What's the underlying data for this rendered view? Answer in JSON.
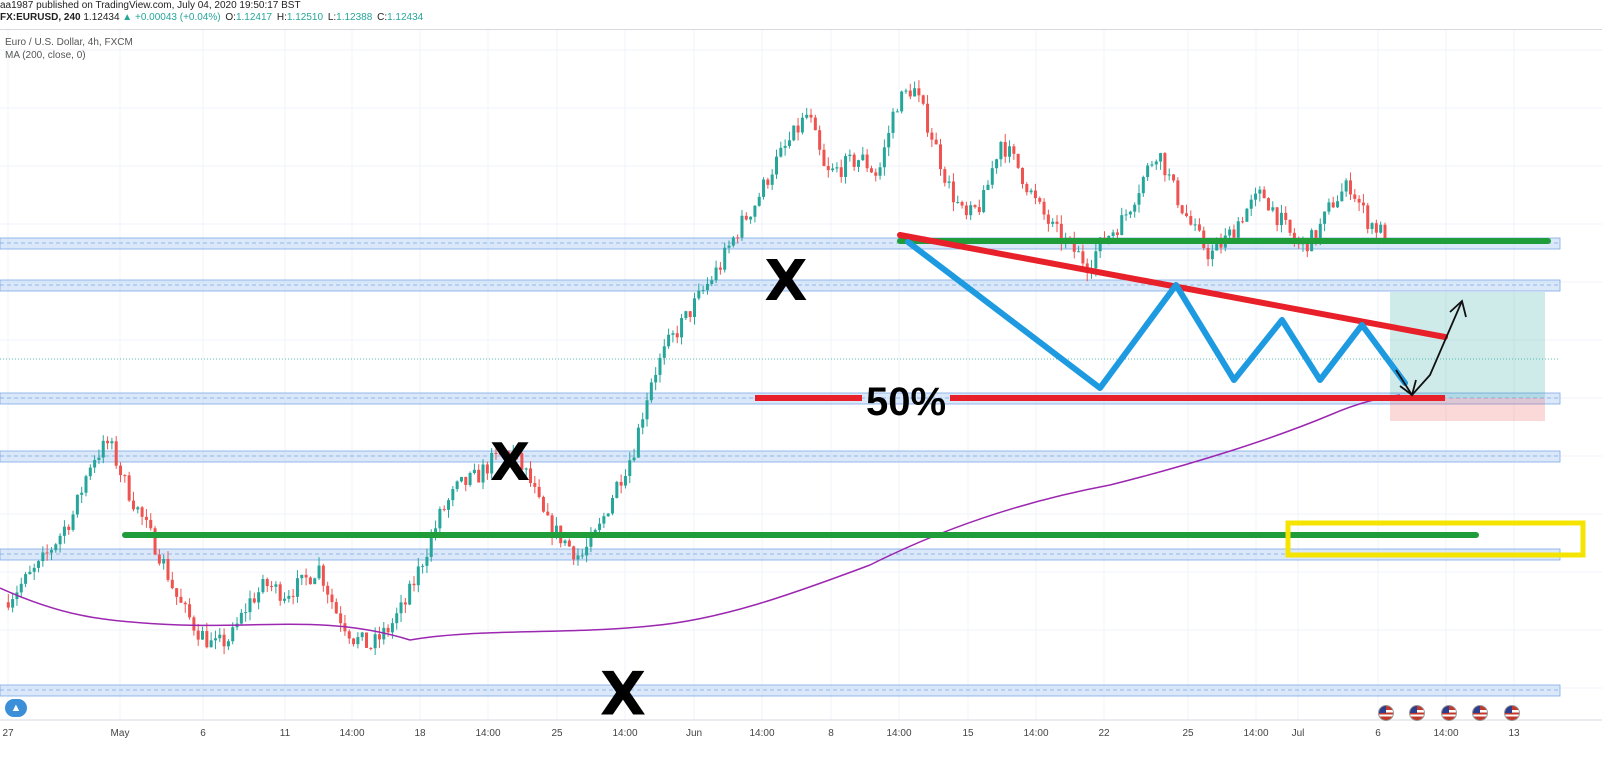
{
  "header": {
    "published": "aa1987 published on TradingView.com, July 04, 2020 19:50:17 BST",
    "symbol": "FX:EURUSD, 240",
    "last": "1.12434",
    "change": "▲ +0.00043 (+0.04%)",
    "open_label": "O:",
    "open": "1.12417",
    "high_label": "H:",
    "high": "1.12510",
    "low_label": "L:",
    "low": "1.12388",
    "close_label": "C:",
    "close": "1.12434"
  },
  "info": {
    "instrument": "Euro / U.S. Dollar, 4h, FXCM",
    "indicator": "MA (200, close, 0)"
  },
  "chart_data": {
    "type": "candlestick",
    "symbol": "EURUSD",
    "timeframe": "4h",
    "x_ticks": [
      "27",
      "May",
      "6",
      "11",
      "14:00",
      "18",
      "14:00",
      "25",
      "14:00",
      "Jun",
      "14:00",
      "8",
      "14:00",
      "15",
      "14:00",
      "22",
      "25",
      "14:00",
      "Jul",
      "6",
      "14:00",
      "13"
    ],
    "close_path": [
      1.083,
      1.085,
      1.087,
      1.09,
      1.093,
      1.099,
      1.101,
      1.096,
      1.092,
      1.088,
      1.083,
      1.08,
      1.078,
      1.079,
      1.083,
      1.085,
      1.084,
      1.085,
      1.087,
      1.082,
      1.079,
      1.078,
      1.08,
      1.083,
      1.088,
      1.093,
      1.096,
      1.097,
      1.099,
      1.1,
      1.097,
      1.092,
      1.09,
      1.088,
      1.091,
      1.096,
      1.1,
      1.108,
      1.112,
      1.115,
      1.118,
      1.121,
      1.125,
      1.128,
      1.132,
      1.135,
      1.138,
      1.131,
      1.132,
      1.133,
      1.131,
      1.139,
      1.141,
      1.136,
      1.13,
      1.126,
      1.128,
      1.135,
      1.132,
      1.128,
      1.125,
      1.123,
      1.121,
      1.124,
      1.126,
      1.13,
      1.134,
      1.129,
      1.125,
      1.122,
      1.124,
      1.127,
      1.129,
      1.126,
      1.123,
      1.124,
      1.128,
      1.13,
      1.126,
      1.1243
    ],
    "ma200_label": "MA (200, close, 0)",
    "annotations": {
      "percent_label": "50%",
      "x_mark": "X"
    },
    "colors": {
      "up": "#26a69a",
      "down": "#ef5350",
      "ma": "#9c27b0",
      "support_resistance": "#1f9d3a",
      "trendline": "#e8202a",
      "zigzag": "#1e9be0",
      "highlight_box": "#f5e400",
      "zone": "#bcd6f5"
    }
  },
  "event_flags": [
    "us-flag",
    "us-flag",
    "us-flag",
    "us-flag",
    "us-flag"
  ]
}
